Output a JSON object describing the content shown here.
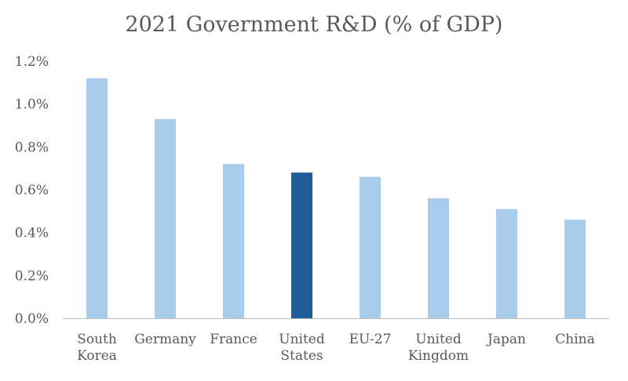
{
  "chart_data": {
    "type": "bar",
    "title": "2021 Government R&D (% of GDP)",
    "xlabel": "",
    "ylabel": "",
    "categories": [
      [
        "South",
        "Korea"
      ],
      [
        "Germany"
      ],
      [
        "France"
      ],
      [
        "United",
        "States"
      ],
      [
        "EU-27"
      ],
      [
        "United",
        "Kingdom"
      ],
      [
        "Japan"
      ],
      [
        "China"
      ]
    ],
    "series": [
      {
        "values": [
          1.12,
          0.93,
          0.72,
          0.68,
          0.66,
          0.56,
          0.51,
          0.46
        ]
      }
    ],
    "value_format": "percent_1dp",
    "ylim": [
      0,
      1.2
    ],
    "yticks": [
      0.0,
      0.2,
      0.4,
      0.6,
      0.8,
      1.0,
      1.2
    ],
    "ytick_labels": [
      "0.0%",
      "0.2%",
      "0.4%",
      "0.6%",
      "0.8%",
      "1.0%",
      "1.2%"
    ],
    "grid": false,
    "legend": "none",
    "colors": {
      "bar_default": "#a9cbec",
      "bar_highlight": "#1f5c99",
      "axis": "#bfbfbf",
      "text": "#595959"
    },
    "highlight_category": "United States"
  }
}
